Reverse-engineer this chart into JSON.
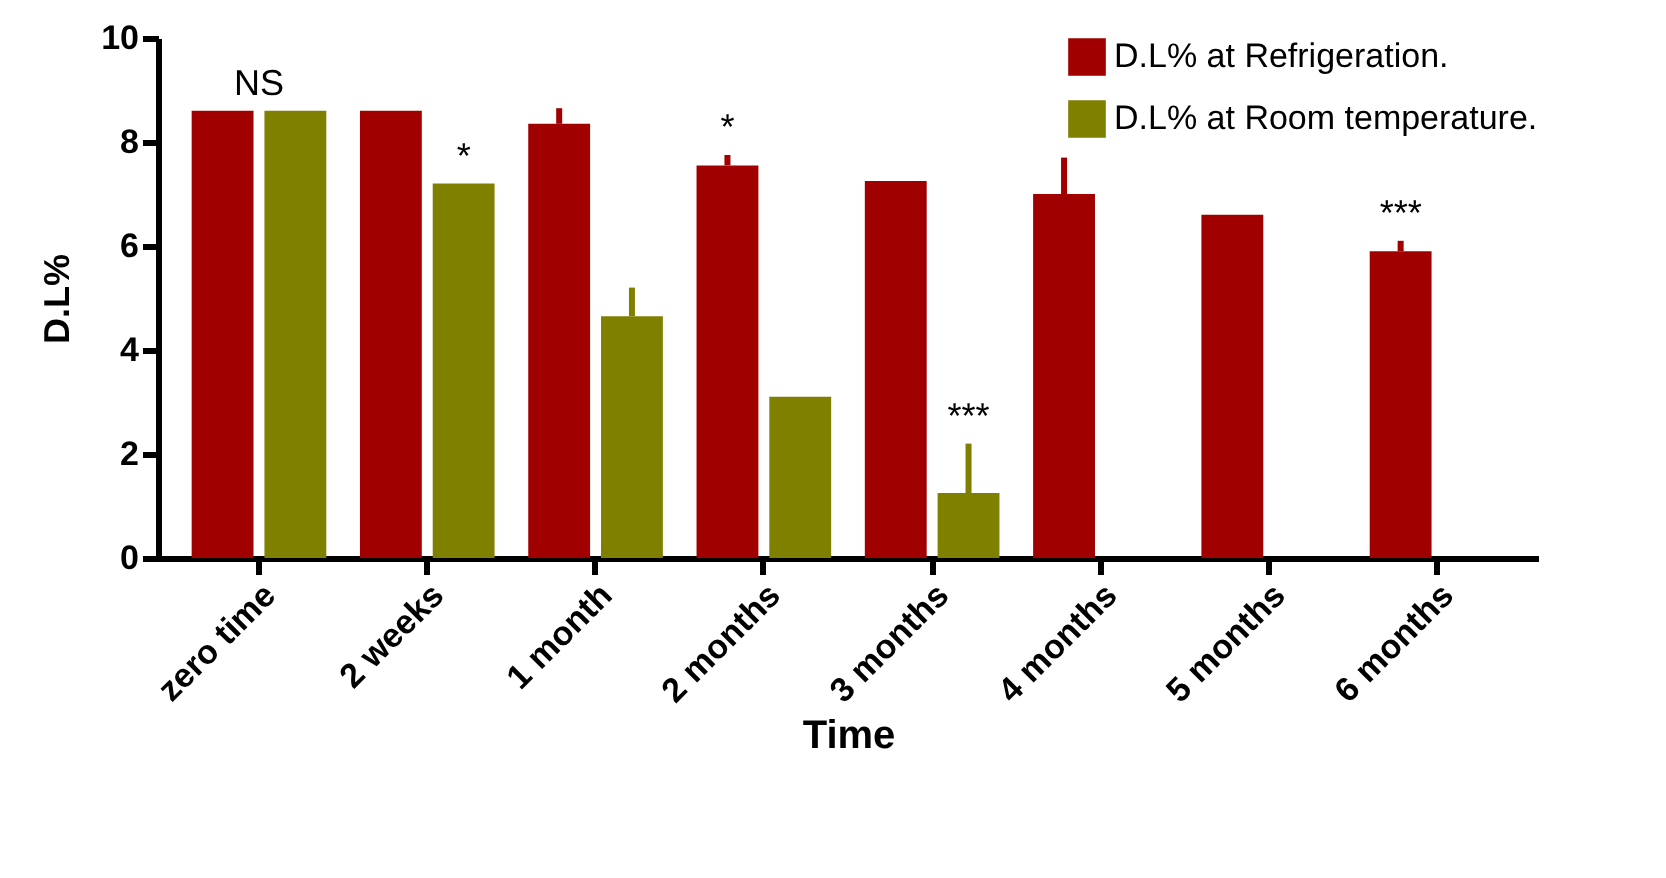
{
  "chart_data": {
    "type": "bar",
    "xlabel": "Time",
    "ylabel": "D.L%",
    "categories": [
      "zero time",
      "2 weeks",
      "1 month",
      "2 months",
      "3 months",
      "4 months",
      "5 months",
      "6 months"
    ],
    "series": [
      {
        "name": "D.L% at Refrigeration.",
        "color": "#a00000",
        "values": [
          8.6,
          8.6,
          8.35,
          7.55,
          7.25,
          7.0,
          6.6,
          5.9
        ],
        "errors": [
          null,
          null,
          [
            8.35,
            8.65
          ],
          [
            7.55,
            7.75
          ],
          null,
          [
            7.0,
            7.7
          ],
          null,
          [
            5.9,
            6.1
          ]
        ]
      },
      {
        "name": "D.L% at Room temperature.",
        "color": "#808000",
        "values": [
          8.6,
          7.2,
          4.65,
          3.1,
          1.25,
          null,
          null,
          null
        ],
        "errors": [
          null,
          null,
          [
            4.65,
            5.2
          ],
          null,
          [
            1.25,
            2.2
          ],
          null,
          null,
          null
        ]
      }
    ],
    "ylim": [
      0,
      10
    ],
    "yticks": [
      0,
      2,
      4,
      6,
      8,
      10
    ],
    "grid": false,
    "legend": "top right",
    "annotations": [
      {
        "text": "NS",
        "x": "zero time",
        "y": 8.6
      },
      {
        "text": "*",
        "x": "2 weeks",
        "y": 7.2
      },
      {
        "text": "*",
        "x": "2 months",
        "y": 7.55
      },
      {
        "text": "***",
        "x": "3 months",
        "y": 1.25
      },
      {
        "text": "***",
        "x": "6 months",
        "y": 5.9
      }
    ]
  }
}
